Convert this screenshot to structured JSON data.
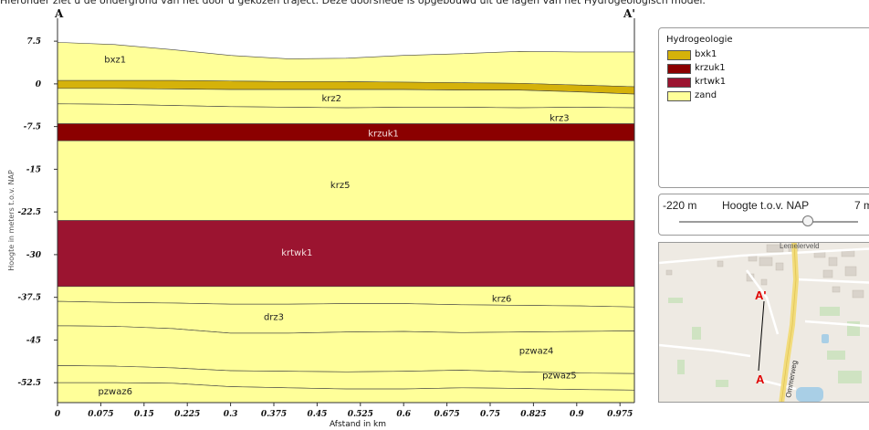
{
  "intro_text": "Hieronder ziet u de ondergrond van het door u gekozen traject. Deze doorsnede is opgebouwd uit de lagen van het Hydrogeologisch model.",
  "section_start": "A",
  "section_end": "A'",
  "legend": {
    "title": "Hydrogeologie",
    "items": [
      {
        "label": "bxk1",
        "color": "#d5b20a"
      },
      {
        "label": "krzuk1",
        "color": "#8b0000"
      },
      {
        "label": "krtwk1",
        "color": "#9b1430"
      },
      {
        "label": "zand",
        "color": "#ffff99"
      }
    ]
  },
  "slider": {
    "min_label": "-220 m",
    "title": "Hoogte t.o.v. NAP",
    "max_label": "7 m"
  },
  "map": {
    "place_label": "Lemelerveld",
    "road_label": "Ommerweg",
    "marker_a": "A",
    "marker_a_prime": "A'"
  },
  "chart_data": {
    "type": "area",
    "xlabel": "Afstand in km",
    "ylabel": "Hoogte in meters t.o.v. NAP",
    "xlim": [
      0,
      1.0
    ],
    "ylim": [
      -56,
      8
    ],
    "x_ticks": [
      "0",
      "0.075",
      "0.15",
      "0.225",
      "0.3",
      "0.375",
      "0.45",
      "0.525",
      "0.6",
      "0.675",
      "0.75",
      "0.825",
      "0.9",
      "0.975"
    ],
    "y_ticks": [
      "7.5",
      "0",
      "-7.5",
      "-15",
      "-22.5",
      "-30",
      "-37.5",
      "-45",
      "-52.5"
    ],
    "y_tick_labels": [
      "7.5",
      "0",
      "-7.5",
      "-15",
      "-22.5",
      "-30",
      "-37.5",
      "-45",
      "-52.5"
    ],
    "x": [
      0,
      0.1,
      0.2,
      0.3,
      0.4,
      0.5,
      0.6,
      0.7,
      0.8,
      0.9,
      1.0
    ],
    "surface": [
      7.3,
      6.9,
      6.0,
      5.0,
      4.4,
      4.5,
      5.0,
      5.3,
      5.7,
      5.6,
      5.6
    ],
    "layers": [
      {
        "name": "bxz1",
        "color": "#ffff99",
        "bottom": [
          0.6,
          0.6,
          0.6,
          0.5,
          0.4,
          0.4,
          0.3,
          0.2,
          0.1,
          -0.2,
          -0.5
        ]
      },
      {
        "name": "bxk1",
        "color": "#d5b20a",
        "bottom": [
          -0.8,
          -0.8,
          -0.9,
          -1.0,
          -1.0,
          -1.0,
          -1.0,
          -1.1,
          -1.1,
          -1.4,
          -1.8
        ]
      },
      {
        "name": "krz2",
        "color": "#ffff99",
        "bottom": [
          -3.5,
          -3.6,
          -3.8,
          -4.0,
          -4.1,
          -4.2,
          -4.1,
          -4.1,
          -4.2,
          -4.1,
          -4.2
        ]
      },
      {
        "name": "krz3",
        "color": "#ffff99",
        "bottom": [
          -7.0,
          -7.0,
          -7.0,
          -7.0,
          -7.0,
          -7.0,
          -7.0,
          -7.0,
          -7.0,
          -7.0,
          -7.0
        ]
      },
      {
        "name": "krzuk1",
        "color": "#8b0000",
        "bottom": [
          -10.0,
          -10.0,
          -10.0,
          -10.0,
          -10.0,
          -10.0,
          -10.0,
          -10.0,
          -10.0,
          -10.0,
          -10.0
        ]
      },
      {
        "name": "krz5",
        "color": "#ffff99",
        "bottom": [
          -24.0,
          -24.0,
          -24.0,
          -24.0,
          -24.0,
          -24.0,
          -24.0,
          -24.0,
          -24.0,
          -24.0,
          -24.0
        ]
      },
      {
        "name": "krtwk1",
        "color": "#9b1430",
        "bottom": [
          -35.6,
          -35.6,
          -35.6,
          -35.6,
          -35.6,
          -35.6,
          -35.6,
          -35.6,
          -35.6,
          -35.6,
          -35.6
        ]
      },
      {
        "name": "krz6",
        "color": "#ffff99",
        "bottom": [
          -38.2,
          -38.4,
          -38.5,
          -38.7,
          -38.7,
          -38.6,
          -38.6,
          -38.8,
          -38.9,
          -39.0,
          -39.2
        ]
      },
      {
        "name": "drz3",
        "color": "#ffff99",
        "bottom": [
          -42.5,
          -42.6,
          -43.0,
          -43.8,
          -43.8,
          -43.6,
          -43.5,
          -43.7,
          -43.6,
          -43.5,
          -43.4
        ]
      },
      {
        "name": "pzwaz4",
        "color": "#ffff99",
        "bottom": [
          -49.5,
          -49.6,
          -49.9,
          -50.4,
          -50.5,
          -50.6,
          -50.5,
          -50.3,
          -50.6,
          -50.8,
          -50.9
        ]
      },
      {
        "name": "pzwaz5",
        "color": "#ffff99",
        "bottom": [
          -52.5,
          -52.5,
          -52.6,
          -53.2,
          -53.4,
          -53.6,
          -53.6,
          -53.4,
          -53.5,
          -53.7,
          -53.8
        ]
      },
      {
        "name": "pzwaz6",
        "color": "#ffff99",
        "bottom": [
          -56,
          -56,
          -56,
          -56,
          -56,
          -56,
          -56,
          -56,
          -56,
          -56,
          -56
        ]
      }
    ],
    "labels": [
      {
        "text": "bxz1",
        "x": 0.1,
        "y": 4.2
      },
      {
        "text": "krz2",
        "x": 0.475,
        "y": -2.6
      },
      {
        "text": "krz3",
        "x": 0.87,
        "y": -6.0
      },
      {
        "text": "krzuk1",
        "x": 0.565,
        "y": -8.8
      },
      {
        "text": "krz5",
        "x": 0.49,
        "y": -17.8
      },
      {
        "text": "krtwk1",
        "x": 0.415,
        "y": -29.7
      },
      {
        "text": "krz6",
        "x": 0.77,
        "y": -37.8
      },
      {
        "text": "drz3",
        "x": 0.375,
        "y": -41.0
      },
      {
        "text": "pzwaz4",
        "x": 0.83,
        "y": -46.9
      },
      {
        "text": "pzwaz5",
        "x": 0.87,
        "y": -51.3
      },
      {
        "text": "pzwaz6",
        "x": 0.1,
        "y": -54.1
      }
    ],
    "grid": false
  }
}
